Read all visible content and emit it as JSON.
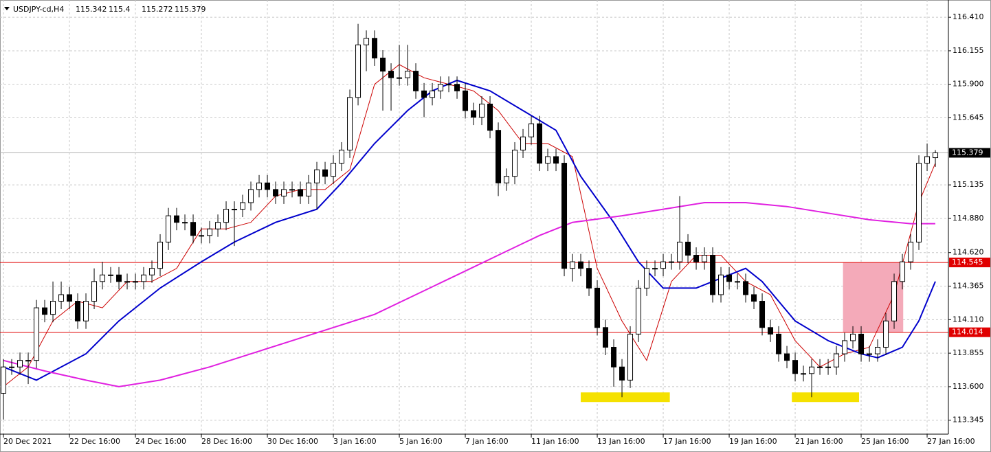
{
  "chart_data": {
    "type": "candlestick",
    "title": "USDJPY-cd,H4",
    "open": [
      113.55,
      113.75,
      113.75,
      113.8,
      113.8,
      114.2,
      114.15,
      114.25,
      114.3,
      114.25,
      114.1,
      114.25,
      114.4,
      114.45,
      114.45,
      114.4,
      114.4,
      114.4,
      114.45,
      114.5,
      114.7,
      114.9,
      114.85,
      114.85,
      114.75,
      114.75,
      114.8,
      114.85,
      114.95,
      114.95,
      115.0,
      115.1,
      115.15,
      115.1,
      115.05,
      115.1,
      115.1,
      115.05,
      115.15,
      115.25,
      115.2,
      115.3,
      115.4,
      115.8,
      116.2,
      116.25,
      116.1,
      116.0,
      115.95,
      115.95,
      116.0,
      115.85,
      115.8,
      115.85,
      115.9,
      115.9,
      115.85,
      115.7,
      115.65,
      115.75,
      115.55,
      115.15,
      115.2,
      115.4,
      115.5,
      115.6,
      115.3,
      115.35,
      115.3,
      114.5,
      114.55,
      114.5,
      114.35,
      114.05,
      113.9,
      113.75,
      113.65,
      114.0,
      114.35,
      114.5,
      114.5,
      114.55,
      114.55,
      114.7,
      114.6,
      114.55,
      114.6,
      114.3,
      114.45,
      114.4,
      114.4,
      114.3,
      114.25,
      114.05,
      114.0,
      113.85,
      113.8,
      113.7,
      113.7,
      113.75,
      113.75,
      113.75,
      113.85,
      113.95,
      114.0,
      113.85,
      113.85,
      113.9,
      114.1,
      114.4,
      114.55,
      114.7,
      115.3,
      115.342
    ],
    "high": [
      113.81,
      113.81,
      113.86,
      113.86,
      114.26,
      114.26,
      114.4,
      114.4,
      114.36,
      114.31,
      114.31,
      114.5,
      114.55,
      114.51,
      114.51,
      114.46,
      114.46,
      114.51,
      114.56,
      114.76,
      114.96,
      114.96,
      114.91,
      114.91,
      114.81,
      114.86,
      114.91,
      115.01,
      115.01,
      115.06,
      115.16,
      115.21,
      115.21,
      115.16,
      115.16,
      115.16,
      115.16,
      115.21,
      115.31,
      115.31,
      115.36,
      115.46,
      115.86,
      116.36,
      116.31,
      116.31,
      116.16,
      116.06,
      116.2,
      116.2,
      116.06,
      115.91,
      115.91,
      115.96,
      115.96,
      115.96,
      115.91,
      115.76,
      115.81,
      115.81,
      115.61,
      115.26,
      115.46,
      115.56,
      115.66,
      115.66,
      115.41,
      115.41,
      115.36,
      114.61,
      114.61,
      114.56,
      114.41,
      114.11,
      113.96,
      113.81,
      114.06,
      114.41,
      114.56,
      114.56,
      114.61,
      114.61,
      115.05,
      114.76,
      114.66,
      114.66,
      114.66,
      114.51,
      114.51,
      114.46,
      114.46,
      114.36,
      114.31,
      114.11,
      114.06,
      113.91,
      113.86,
      113.76,
      113.81,
      113.81,
      113.81,
      113.91,
      114.01,
      114.06,
      114.06,
      113.91,
      113.96,
      114.16,
      114.46,
      114.61,
      114.76,
      115.36,
      115.45,
      115.4
    ],
    "low": [
      113.35,
      113.69,
      113.69,
      113.62,
      113.74,
      114.09,
      114.09,
      114.19,
      114.19,
      114.04,
      114.04,
      114.19,
      114.34,
      114.39,
      114.34,
      114.34,
      114.34,
      114.34,
      114.39,
      114.44,
      114.64,
      114.79,
      114.79,
      114.69,
      114.69,
      114.69,
      114.74,
      114.79,
      114.67,
      114.89,
      114.94,
      115.04,
      115.04,
      114.99,
      114.99,
      115.04,
      114.99,
      114.99,
      114.95,
      115.14,
      115.14,
      115.24,
      115.34,
      115.74,
      116.0,
      116.04,
      115.7,
      115.7,
      115.89,
      115.89,
      115.79,
      115.65,
      115.74,
      115.79,
      115.84,
      115.79,
      115.64,
      115.59,
      115.59,
      115.49,
      115.05,
      115.09,
      115.14,
      115.34,
      115.44,
      115.24,
      115.24,
      115.24,
      114.44,
      114.4,
      114.44,
      114.29,
      113.99,
      113.84,
      113.6,
      113.52,
      113.59,
      113.94,
      114.29,
      114.44,
      114.44,
      114.49,
      114.49,
      114.54,
      114.49,
      114.49,
      114.24,
      114.24,
      114.34,
      114.34,
      114.24,
      114.19,
      113.99,
      113.94,
      113.79,
      113.74,
      113.64,
      113.64,
      113.52,
      113.69,
      113.69,
      113.69,
      113.79,
      113.89,
      113.79,
      113.79,
      113.79,
      113.84,
      114.04,
      114.34,
      114.49,
      114.64,
      115.24,
      115.272
    ],
    "close": [
      113.75,
      113.75,
      113.8,
      113.8,
      114.2,
      114.15,
      114.25,
      114.3,
      114.25,
      114.1,
      114.25,
      114.4,
      114.45,
      114.45,
      114.4,
      114.4,
      114.4,
      114.45,
      114.5,
      114.7,
      114.9,
      114.85,
      114.85,
      114.75,
      114.75,
      114.8,
      114.85,
      114.95,
      114.95,
      115.0,
      115.1,
      115.15,
      115.1,
      115.05,
      115.1,
      115.1,
      115.05,
      115.15,
      115.25,
      115.2,
      115.3,
      115.4,
      115.8,
      116.2,
      116.25,
      116.1,
      116.0,
      115.95,
      115.95,
      116.0,
      115.85,
      115.8,
      115.85,
      115.9,
      115.9,
      115.85,
      115.7,
      115.65,
      115.75,
      115.55,
      115.15,
      115.2,
      115.4,
      115.5,
      115.6,
      115.3,
      115.35,
      115.3,
      114.5,
      114.55,
      114.5,
      114.35,
      114.05,
      113.9,
      113.75,
      113.65,
      114.0,
      114.35,
      114.5,
      114.5,
      114.55,
      114.55,
      114.7,
      114.6,
      114.55,
      114.6,
      114.3,
      114.45,
      114.4,
      114.4,
      114.3,
      114.25,
      114.05,
      114.0,
      113.85,
      113.8,
      113.7,
      113.7,
      113.75,
      113.75,
      113.75,
      113.85,
      113.95,
      114.0,
      113.85,
      113.85,
      113.9,
      114.1,
      114.4,
      114.55,
      114.7,
      115.3,
      115.35,
      115.379
    ],
    "lines": [
      {
        "color": "#cc0000",
        "x": [
          0,
          3,
          6,
          9,
          12,
          15,
          18,
          21,
          24,
          27,
          30,
          33,
          36,
          39,
          42,
          45,
          48,
          51,
          54,
          57,
          60,
          63,
          66,
          69,
          72,
          75,
          78,
          81,
          84,
          87,
          90,
          93,
          96,
          99,
          102,
          105,
          108,
          111,
          113
        ],
        "values": [
          113.6,
          113.75,
          114.1,
          114.25,
          114.2,
          114.4,
          114.4,
          114.5,
          114.8,
          114.8,
          114.85,
          115.05,
          115.1,
          115.1,
          115.25,
          115.9,
          116.05,
          115.95,
          115.9,
          115.85,
          115.7,
          115.45,
          115.45,
          115.35,
          114.5,
          114.1,
          113.8,
          114.4,
          114.6,
          114.6,
          114.4,
          114.3,
          113.95,
          113.75,
          113.85,
          113.9,
          114.3,
          115.0,
          115.3
        ]
      },
      {
        "color": "#0000cc",
        "x": [
          0,
          4,
          10,
          14,
          19,
          24,
          28,
          33,
          38,
          41,
          45,
          49,
          52,
          55,
          59,
          63,
          67,
          70,
          74,
          77,
          80,
          84,
          90,
          92,
          96,
          100,
          104,
          106,
          109,
          111,
          113
        ],
        "values": [
          113.75,
          113.65,
          113.85,
          114.1,
          114.35,
          114.55,
          114.7,
          114.85,
          114.95,
          115.15,
          115.45,
          115.7,
          115.85,
          115.93,
          115.85,
          115.7,
          115.55,
          115.2,
          114.85,
          114.55,
          114.35,
          114.35,
          114.5,
          114.4,
          114.1,
          113.95,
          113.85,
          113.82,
          113.9,
          114.1,
          114.4
        ]
      },
      {
        "color": "#e020e0",
        "x": [
          0,
          5,
          10,
          14,
          19,
          25,
          30,
          35,
          40,
          45,
          50,
          55,
          60,
          65,
          69,
          75,
          80,
          85,
          90,
          95,
          100,
          105,
          110,
          113
        ],
        "values": [
          113.8,
          113.72,
          113.65,
          113.6,
          113.65,
          113.75,
          113.85,
          113.95,
          114.05,
          114.15,
          114.3,
          114.45,
          114.6,
          114.75,
          114.85,
          114.9,
          114.95,
          115.0,
          115.0,
          114.97,
          114.92,
          114.87,
          114.84,
          114.84
        ]
      }
    ],
    "levels": [
      114.545,
      114.014
    ],
    "level_color": "#e00000",
    "zone": {
      "x": [
        101.8,
        109.1
      ],
      "y": [
        114.014,
        114.545
      ],
      "color": "#f4aab9"
    },
    "highlights": [
      {
        "x": [
          70,
          80.8
        ],
        "y": 113.52
      },
      {
        "x": [
          95.6,
          103.75
        ],
        "y": 113.52
      }
    ],
    "highlight_color": "#f5e100",
    "xlim": [
      -0.42,
      114.58
    ],
    "ylim": [
      113.26,
      116.51
    ],
    "yticks": [
      {
        "value": 116.41,
        "label": "116.410"
      },
      116.155,
      {
        "value": 115.9,
        "label": "115.900"
      },
      115.645,
      115.135,
      {
        "value": 114.88,
        "label": "114.880"
      },
      {
        "value": 114.62,
        "label": "114.620"
      },
      114.365,
      {
        "value": 114.11,
        "label": "114.110"
      },
      113.855,
      {
        "value": 113.6,
        "label": "113.600"
      },
      113.345
    ],
    "xticks": [
      {
        "value": 0,
        "label": "20 Dec 2021"
      },
      {
        "value": 8,
        "label": "22 Dec 16:00"
      },
      {
        "value": 16,
        "label": "24 Dec 16:00"
      },
      {
        "value": 24,
        "label": "28 Dec 16:00"
      },
      {
        "value": 32,
        "label": "30 Dec 16:00"
      },
      {
        "value": 40,
        "label": "3 Jan 16:00"
      },
      {
        "value": 48,
        "label": "5 Jan 16:00"
      },
      {
        "value": 56,
        "label": "7 Jan 16:00"
      },
      {
        "value": 64,
        "label": "11 Jan 16:00"
      },
      {
        "value": 72,
        "label": "13 Jan 16:00"
      },
      {
        "value": 80,
        "label": "17 Jan 16:00"
      },
      {
        "value": 88,
        "label": "19 Jan 16:00"
      },
      {
        "value": 96,
        "label": "21 Jan 16:00"
      },
      {
        "value": 104,
        "label": "25 Jan 16:00"
      },
      {
        "value": 112,
        "label": "27 Jan 16:00"
      }
    ],
    "grid": true
  }
}
